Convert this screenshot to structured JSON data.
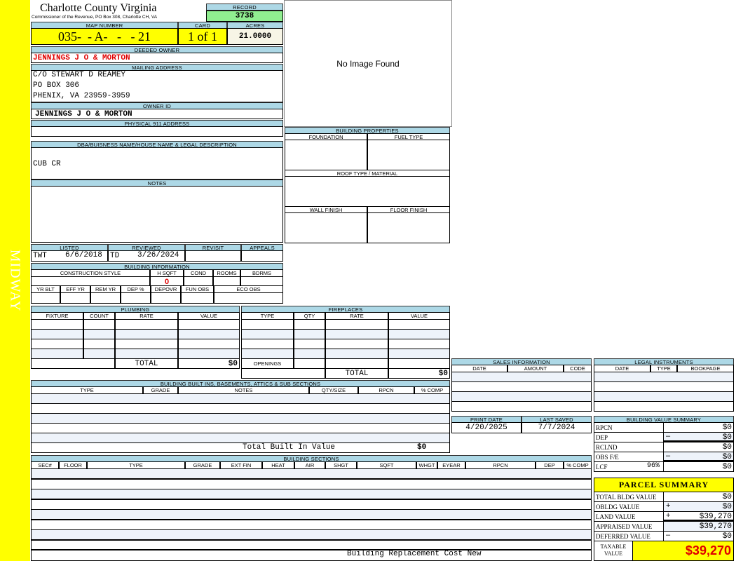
{
  "side_label": "MIDWAY",
  "header": {
    "title": "Charlotte County Virginia",
    "subtitle": "Commissioner of the Revenue, PO Box 308, Charlotte CH, VA",
    "record_label": "RECORD",
    "record": "3738"
  },
  "map": {
    "map_label": "MAP NUMBER",
    "map_number": "035-  - A-   -   - 21",
    "card_label": "CARD",
    "card": "1 of 1",
    "acres_label": "ACRES",
    "acres": "21.0000"
  },
  "owner": {
    "deeded_label": "DEEDED OWNER",
    "deeded": "JENNINGS J O & MORTON",
    "mailing_label": "MAILING ADDRESS",
    "mailing": [
      "C/O STEWART D REAMEY",
      "PO BOX 306",
      "PHENIX, VA 23959-3959"
    ],
    "owner_id_label": "OWNER ID",
    "owner_id": "JENNINGS J O & MORTON",
    "physical_label": "PHYSICAL 911 ADDRESS",
    "physical": ""
  },
  "image": {
    "text": "No Image Found"
  },
  "dba": {
    "label": "DBA/BUISNESS NAME/HOUSE NAME & LEGAL DESCRIPTION",
    "value": "CUB CR"
  },
  "notes": {
    "label": "NOTES",
    "value": ""
  },
  "building_properties": {
    "label": "BUILDING PROPERTIES",
    "foundation": "FOUNDATION",
    "fuel": "FUEL TYPE",
    "roof": "ROOF TYPE / MATERIAL",
    "wall": "WALL FINISH",
    "floor": "FLOOR FINISH"
  },
  "review": {
    "listed_label": "LISTED",
    "listed_by": "TWT",
    "listed_date": "6/6/2018",
    "reviewed_label": "REVIEWED",
    "reviewed_by": "TD",
    "reviewed_date": "3/26/2024",
    "revisit_label": "REVISIT",
    "appeals_label": "APPEALS"
  },
  "building_info": {
    "label": "BUILDING INFORMATION",
    "cols1": [
      "CONSTRUCTION STYLE",
      "H SQFT",
      "COND",
      "ROOMS",
      "BDRMS"
    ],
    "vals1": [
      "",
      "0",
      "",
      "",
      ""
    ],
    "cols2": [
      "YR BLT",
      "EFF YR",
      "REM YR",
      "DEP %",
      "DEPOVR",
      "FUN OBS",
      "ECO OBS"
    ]
  },
  "plumbing": {
    "label": "PLUMBING",
    "cols": [
      "FIXTURE",
      "COUNT",
      "RATE",
      "VALUE"
    ],
    "total_label": "TOTAL",
    "total": "$0"
  },
  "fireplaces": {
    "label": "FIREPLACES",
    "cols": [
      "TYPE",
      "QTY",
      "RATE",
      "VALUE"
    ],
    "openings": "OPENINGS",
    "total_label": "TOTAL",
    "total": "$0"
  },
  "sales": {
    "label": "SALES INFORMATION",
    "cols": [
      "DATE",
      "AMOUNT",
      "CODE"
    ]
  },
  "legal": {
    "label": "LEGAL INSTRUMENTS",
    "cols": [
      "DATE",
      "TYPE",
      "BOOKPAGE"
    ]
  },
  "dates": {
    "print_label": "PRINT DATE",
    "print": "4/20/2025",
    "saved_label": "LAST SAVED",
    "saved": "7/7/2024"
  },
  "bvs": {
    "label": "BUILDING VALUE SUMMARY",
    "rows": [
      {
        "label": "RPCN",
        "sign": "",
        "value": "$0"
      },
      {
        "label": "DEP",
        "sign": "–",
        "value": "$0"
      },
      {
        "label": "RCLND",
        "sign": "",
        "value": "$0"
      },
      {
        "label": "OBS F/E",
        "sign": "–",
        "value": "$0"
      },
      {
        "label": "LCF",
        "pct": "96%",
        "sign": "",
        "value": "$0"
      }
    ]
  },
  "parcel": {
    "label": "PARCEL SUMMARY",
    "rows": [
      {
        "label": "TOTAL BLDG VALUE",
        "sign": "",
        "value": "$0"
      },
      {
        "label": "OBLDG VALUE",
        "sign": "+",
        "value": "$0"
      },
      {
        "label": "LAND VALUE",
        "sign": "+",
        "value": "$39,270"
      },
      {
        "label": "APPRAISED VALUE",
        "sign": "",
        "value": "$39,270"
      },
      {
        "label": "DEFERRED VALUE",
        "sign": "–",
        "value": "$0"
      }
    ],
    "taxable_label": "TAXABLE VALUE",
    "taxable": "$39,270"
  },
  "builtins": {
    "label": "BUILDING BUILT INS, BASEMENTS, ATTICS & SUB SECTIONS",
    "cols": [
      "TYPE",
      "GRADE",
      "NOTES",
      "QTY/SIZE",
      "RPCN",
      "% COMP"
    ],
    "total_label": "Total Built In Value",
    "total": "$0"
  },
  "sections": {
    "label": "BUILDING SECTIONS",
    "cols": [
      "SEC#",
      "FLOOR",
      "TYPE",
      "GRADE",
      "EXT FIN",
      "HEAT",
      "AIR",
      "SHGT",
      "SQFT",
      "WHGT",
      "EYEAR",
      "RPCN",
      "DEP",
      "% COMP"
    ],
    "footer": "Building Replacement Cost New"
  },
  "colors": {
    "header": "#add8e6",
    "highlight": "#ffff00",
    "record": "#90ee90",
    "red": "#e00000"
  }
}
